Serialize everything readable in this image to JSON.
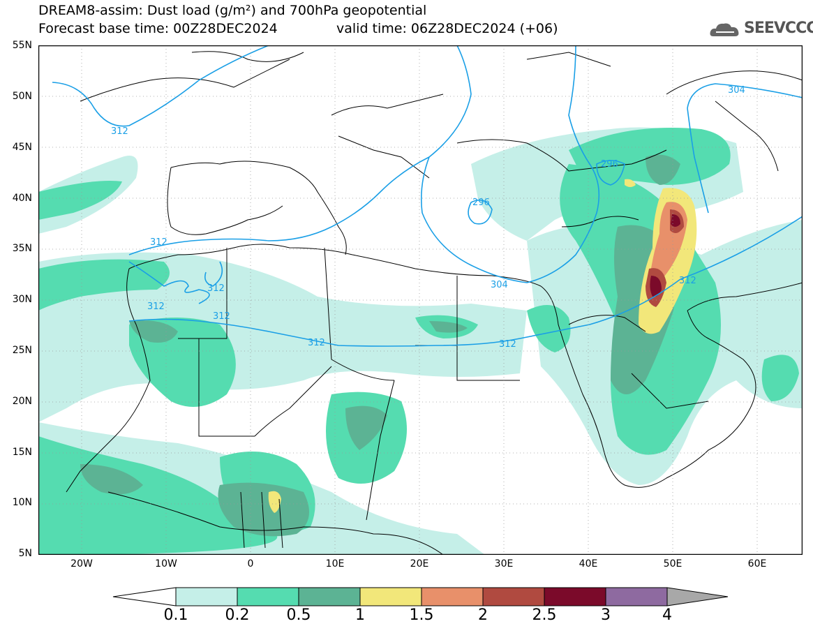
{
  "header": {
    "title_line1": "DREAM8-assim: Dust load (g/m²) and 700hPa geopotential",
    "title_line2_left": "Forecast base time: 00Z28DEC2024",
    "title_line2_right": "valid time: 06Z28DEC2024 (+06)",
    "logo_text": "SEEVCCC",
    "logo_icon": "cloud-icon"
  },
  "axes": {
    "lat_labels": [
      "55N",
      "50N",
      "45N",
      "40N",
      "35N",
      "30N",
      "25N",
      "20N",
      "15N",
      "10N",
      "5N"
    ],
    "lon_labels": [
      "20W",
      "10W",
      "0",
      "10E",
      "20E",
      "30E",
      "40E",
      "50E",
      "60E"
    ]
  },
  "contours": {
    "labels": [
      "312",
      "304",
      "296",
      "312",
      "312",
      "312",
      "312",
      "312",
      "312",
      "304",
      "296",
      "312"
    ],
    "color": "#1a9fe6"
  },
  "colorbar": {
    "ticks": [
      "0.1",
      "0.2",
      "0.5",
      "1",
      "1.5",
      "2",
      "2.5",
      "3",
      "4"
    ],
    "colors": [
      "#c5efe8",
      "#55dcb0",
      "#5cb394",
      "#f2e77a",
      "#e8906a",
      "#b04a40",
      "#7b0a2a",
      "#8e6aa0"
    ],
    "under_color": "#ffffff",
    "over_color": "#a8a8a8"
  }
}
